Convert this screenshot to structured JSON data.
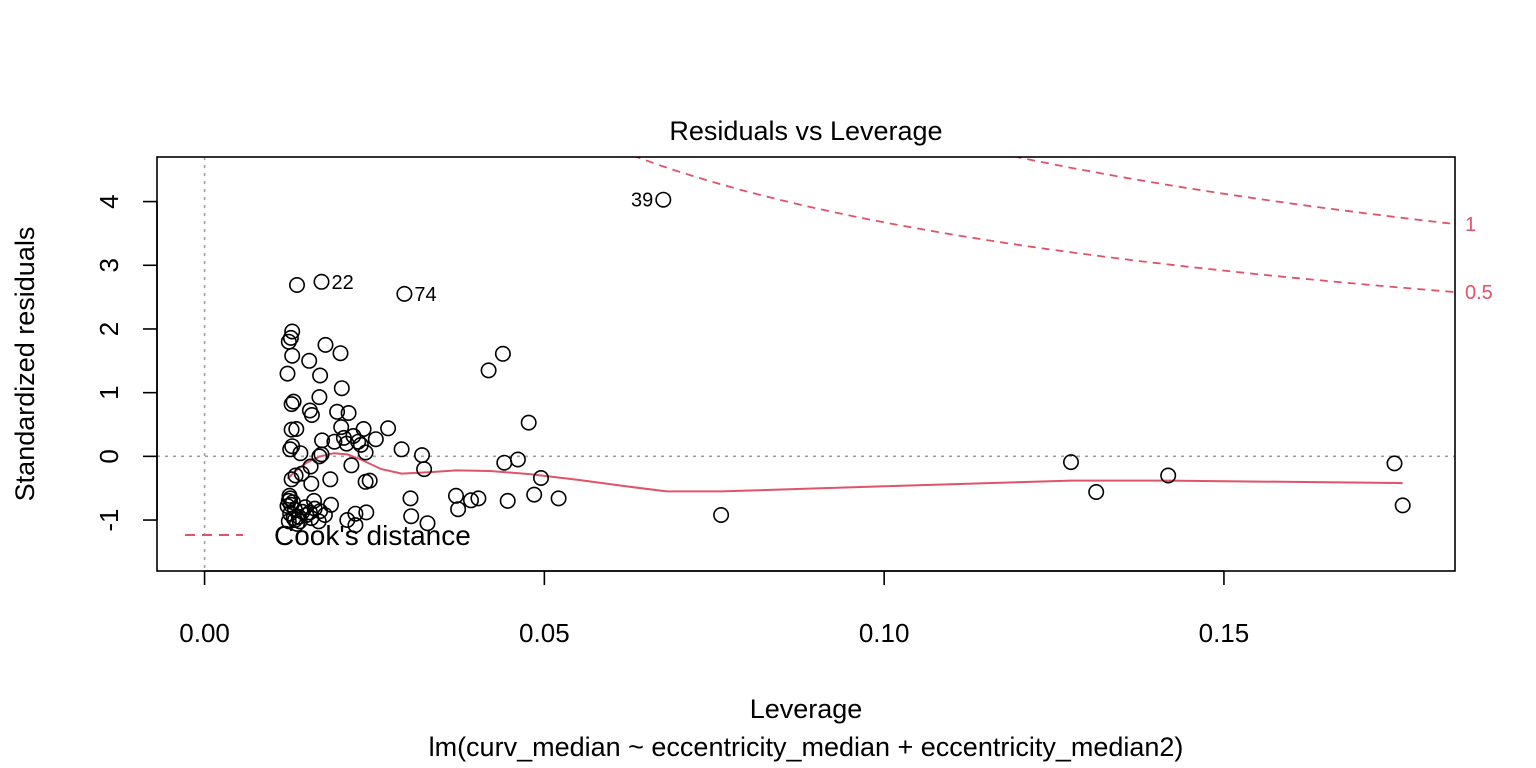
{
  "chart_data": {
    "type": "scatter",
    "title": "Residuals vs Leverage",
    "xlabel": "Leverage",
    "ylabel": "Standardized residuals",
    "sublabel": "lm(curv_median ~ eccentricity_median + eccentricity_median2)",
    "xlim": [
      -0.007,
      0.184
    ],
    "ylim": [
      -1.8,
      4.7
    ],
    "x_ticks": [
      0.0,
      0.05,
      0.1,
      0.15
    ],
    "x_tick_labels": [
      "0.00",
      "0.05",
      "0.10",
      "0.15"
    ],
    "y_ticks": [
      -1,
      0,
      1,
      2,
      3,
      4
    ],
    "y_tick_labels": [
      "-1",
      "0",
      "1",
      "2",
      "3",
      "4"
    ],
    "reference_lines": {
      "vertical_x": 0,
      "horizontal_y": 0,
      "color": "#a0a0a0"
    },
    "colors": {
      "points": "#000000",
      "smoother": "#df536b",
      "cooks": "#df536b"
    },
    "legend": {
      "position": "bottom-left",
      "label": "Cook's distance"
    },
    "cooks_contours": [
      {
        "level": 1,
        "label": "1"
      },
      {
        "level": 0.5,
        "label": "0.5"
      }
    ],
    "cooks_params": 3,
    "labeled_points": [
      {
        "label": "39",
        "x": 0.0675,
        "y": 4.03,
        "side": "left"
      },
      {
        "label": "22",
        "x": 0.0172,
        "y": 2.74,
        "side": "right"
      },
      {
        "label": "74",
        "x": 0.0294,
        "y": 2.55,
        "side": "right"
      }
    ],
    "points": [
      [
        0.0675,
        4.03
      ],
      [
        0.0172,
        2.74
      ],
      [
        0.0294,
        2.55
      ],
      [
        0.0136,
        2.69
      ],
      [
        0.0129,
        1.96
      ],
      [
        0.0124,
        1.8
      ],
      [
        0.0127,
        1.86
      ],
      [
        0.0129,
        1.58
      ],
      [
        0.0154,
        1.5
      ],
      [
        0.0178,
        1.75
      ],
      [
        0.02,
        1.62
      ],
      [
        0.0122,
        1.3
      ],
      [
        0.017,
        1.27
      ],
      [
        0.0202,
        1.07
      ],
      [
        0.0169,
        0.93
      ],
      [
        0.0128,
        0.82
      ],
      [
        0.0131,
        0.86
      ],
      [
        0.0155,
        0.72
      ],
      [
        0.0158,
        0.65
      ],
      [
        0.0195,
        0.7
      ],
      [
        0.0212,
        0.68
      ],
      [
        0.0135,
        0.43
      ],
      [
        0.0128,
        0.42
      ],
      [
        0.0201,
        0.46
      ],
      [
        0.0234,
        0.43
      ],
      [
        0.0219,
        0.32
      ],
      [
        0.0205,
        0.29
      ],
      [
        0.0191,
        0.23
      ],
      [
        0.0173,
        0.25
      ],
      [
        0.0209,
        0.2
      ],
      [
        0.023,
        0.18
      ],
      [
        0.0226,
        0.23
      ],
      [
        0.0252,
        0.27
      ],
      [
        0.027,
        0.44
      ],
      [
        0.029,
        0.11
      ],
      [
        0.0126,
        0.11
      ],
      [
        0.0129,
        0.16
      ],
      [
        0.0141,
        0.05
      ],
      [
        0.0172,
        0.03
      ],
      [
        0.0169,
        0.0
      ],
      [
        0.0237,
        0.06
      ],
      [
        0.032,
        0.02
      ],
      [
        0.0323,
        -0.2
      ],
      [
        0.0216,
        -0.14
      ],
      [
        0.0156,
        -0.16
      ],
      [
        0.0143,
        -0.27
      ],
      [
        0.0134,
        -0.3
      ],
      [
        0.0128,
        -0.36
      ],
      [
        0.0185,
        -0.36
      ],
      [
        0.0237,
        -0.4
      ],
      [
        0.0243,
        -0.38
      ],
      [
        0.0157,
        -0.43
      ],
      [
        0.0303,
        -0.66
      ],
      [
        0.037,
        -0.62
      ],
      [
        0.0392,
        -0.69
      ],
      [
        0.0403,
        -0.66
      ],
      [
        0.0373,
        -0.83
      ],
      [
        0.0446,
        -0.7
      ],
      [
        0.0485,
        -0.6
      ],
      [
        0.0521,
        -0.66
      ],
      [
        0.0495,
        -0.34
      ],
      [
        0.0441,
        -0.1
      ],
      [
        0.0461,
        -0.05
      ],
      [
        0.0477,
        0.53
      ],
      [
        0.0418,
        1.35
      ],
      [
        0.0439,
        1.61
      ],
      [
        0.076,
        -0.92
      ],
      [
        0.0125,
        -0.62
      ],
      [
        0.0124,
        -0.7
      ],
      [
        0.0127,
        -0.76
      ],
      [
        0.0133,
        -0.84
      ],
      [
        0.0126,
        -0.9
      ],
      [
        0.0131,
        -0.97
      ],
      [
        0.0124,
        -1.02
      ],
      [
        0.0136,
        -1.06
      ],
      [
        0.0139,
        -0.95
      ],
      [
        0.0144,
        -0.87
      ],
      [
        0.015,
        -0.92
      ],
      [
        0.0157,
        -0.97
      ],
      [
        0.0161,
        -0.7
      ],
      [
        0.0162,
        -0.82
      ],
      [
        0.017,
        -0.86
      ],
      [
        0.0186,
        -0.76
      ],
      [
        0.0177,
        -0.92
      ],
      [
        0.0168,
        -1.02
      ],
      [
        0.021,
        -1.0
      ],
      [
        0.0222,
        -0.9
      ],
      [
        0.0222,
        -1.08
      ],
      [
        0.0238,
        -0.88
      ],
      [
        0.0304,
        -0.94
      ],
      [
        0.0328,
        -1.05
      ],
      [
        0.0133,
        -1.0
      ],
      [
        0.014,
        -1.02
      ],
      [
        0.0148,
        -0.8
      ],
      [
        0.0155,
        -0.88
      ],
      [
        0.0122,
        -0.78
      ],
      [
        0.0126,
        -0.66
      ],
      [
        0.013,
        -0.72
      ],
      [
        0.1275,
        -0.09
      ],
      [
        0.1312,
        -0.56
      ],
      [
        0.1418,
        -0.3
      ],
      [
        0.1751,
        -0.11
      ],
      [
        0.1763,
        -0.77
      ]
    ],
    "smoother": [
      [
        0.0122,
        -0.35
      ],
      [
        0.0135,
        -0.22
      ],
      [
        0.015,
        -0.1
      ],
      [
        0.017,
        0.0
      ],
      [
        0.019,
        0.05
      ],
      [
        0.021,
        0.03
      ],
      [
        0.023,
        -0.05
      ],
      [
        0.026,
        -0.2
      ],
      [
        0.029,
        -0.27
      ],
      [
        0.033,
        -0.25
      ],
      [
        0.037,
        -0.22
      ],
      [
        0.042,
        -0.23
      ],
      [
        0.048,
        -0.28
      ],
      [
        0.055,
        -0.37
      ],
      [
        0.062,
        -0.47
      ],
      [
        0.068,
        -0.55
      ],
      [
        0.076,
        -0.55
      ],
      [
        0.1,
        -0.47
      ],
      [
        0.1275,
        -0.38
      ],
      [
        0.1418,
        -0.38
      ],
      [
        0.1763,
        -0.42
      ]
    ]
  }
}
